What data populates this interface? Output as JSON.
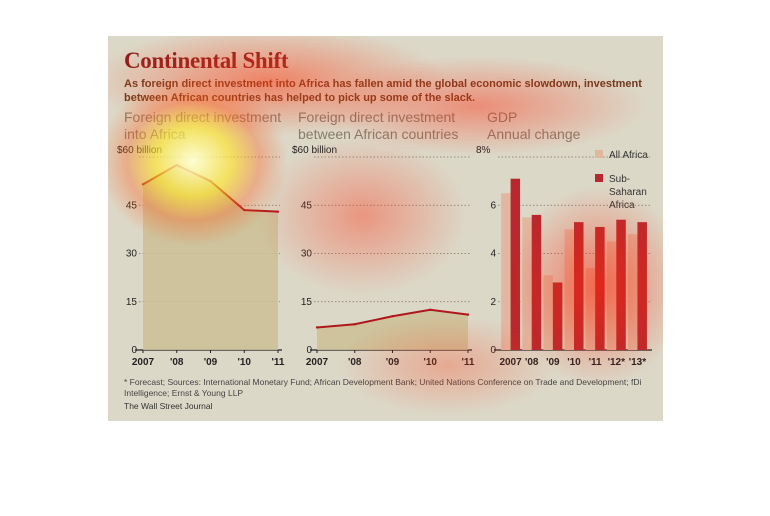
{
  "header": {
    "title": "Continental Shift",
    "subtitle": "As foreign direct investment into Africa has fallen amid the global economic slowdown, investment between African countries has helped to pick up some of the slack."
  },
  "colors": {
    "background": "#dcd8c8",
    "title": "#8b1b1b",
    "line": "#b0171c",
    "area": "#cbbf95",
    "all_africa": "#e2b7a0",
    "sub_saharan_africa": "#b8282e"
  },
  "chart_data": [
    {
      "type": "area",
      "title_lines": [
        "Foreign direct investment",
        "into Africa"
      ],
      "categories": [
        "2007",
        "'08",
        "'09",
        "'10",
        "'11"
      ],
      "values": [
        51.5,
        57.5,
        52.5,
        43.5,
        43
      ],
      "ylim": [
        0,
        60
      ],
      "yticks": [
        "0",
        "15",
        "30",
        "45",
        "$60 billion"
      ],
      "ytick_values": [
        0,
        15,
        30,
        45,
        60
      ],
      "grid": true
    },
    {
      "type": "area",
      "title_lines": [
        "Foreign direct investment",
        "between African countries"
      ],
      "categories": [
        "2007",
        "'08",
        "'09",
        "'10",
        "'11"
      ],
      "values": [
        7,
        8,
        10.5,
        12.5,
        11
      ],
      "ylim": [
        0,
        60
      ],
      "yticks": [
        "0",
        "15",
        "30",
        "45",
        "$60 billion"
      ],
      "ytick_values": [
        0,
        15,
        30,
        45,
        60
      ],
      "grid": true
    },
    {
      "type": "bar",
      "title_lines": [
        "GDP",
        "Annual change"
      ],
      "categories": [
        "2007",
        "'08",
        "'09",
        "'10",
        "'11",
        "'12*",
        "'13*"
      ],
      "series": [
        {
          "name": "All Africa",
          "values": [
            6.5,
            5.5,
            3.1,
            5.0,
            3.4,
            4.5,
            4.8
          ]
        },
        {
          "name": "Sub-Saharan Africa",
          "values": [
            7.1,
            5.6,
            2.8,
            5.3,
            5.1,
            5.4,
            5.3
          ]
        }
      ],
      "ylim": [
        0,
        8
      ],
      "yticks": [
        "0",
        "2",
        "4",
        "6",
        "8%"
      ],
      "ytick_values": [
        0,
        2,
        4,
        6,
        8
      ],
      "legend": [
        "All Africa",
        "Sub-Saharan Africa"
      ],
      "legend_position": "top-right",
      "grid": true
    }
  ],
  "footer": {
    "footnote": "* Forecast; Sources: International Monetary Fund; African Development Bank; United Nations Conference on Trade and Development; fDi Intelligence; Ernst & Young LLP",
    "credit": "The Wall Street Journal"
  }
}
